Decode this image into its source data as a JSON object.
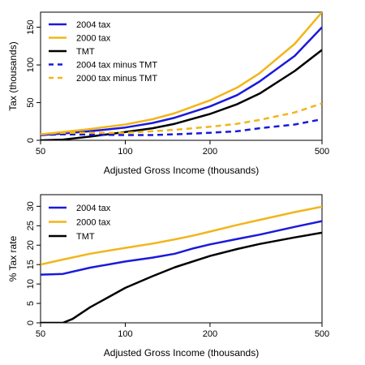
{
  "chart_data": [
    {
      "type": "line",
      "xlabel": "Adjusted Gross Income (thousands)",
      "ylabel": "Tax (thousands)",
      "x_scale": "log",
      "xlim": [
        50,
        500
      ],
      "ylim": [
        0,
        170
      ],
      "xticks": [
        50,
        100,
        200,
        500
      ],
      "yticks": [
        0,
        50,
        100,
        150
      ],
      "grid": false,
      "legend_position": "top-left",
      "series": [
        {
          "name": "2004 tax",
          "color": "#1a1adb",
          "style": "solid",
          "x": [
            50,
            60,
            75,
            100,
            125,
            150,
            200,
            250,
            300,
            400,
            500
          ],
          "y": [
            7,
            9,
            12,
            17,
            23,
            30,
            45,
            60,
            78,
            112,
            150
          ]
        },
        {
          "name": "2000 tax",
          "color": "#f2b51a",
          "style": "solid",
          "x": [
            50,
            60,
            75,
            100,
            125,
            150,
            200,
            250,
            300,
            400,
            500
          ],
          "y": [
            8,
            11,
            15,
            21,
            28,
            36,
            53,
            70,
            89,
            128,
            170
          ]
        },
        {
          "name": "TMT",
          "color": "#000000",
          "style": "solid",
          "x": [
            50,
            60,
            75,
            100,
            125,
            150,
            200,
            250,
            300,
            400,
            500
          ],
          "y": [
            0,
            1,
            5,
            11,
            16,
            22,
            35,
            48,
            62,
            92,
            120
          ]
        },
        {
          "name": "2004 tax minus TMT",
          "color": "#1a1adb",
          "style": "dashed",
          "x": [
            50,
            60,
            75,
            100,
            125,
            150,
            200,
            250,
            300,
            400,
            500
          ],
          "y": [
            7,
            8,
            7.5,
            7,
            7,
            8,
            10,
            12,
            16,
            21,
            28
          ]
        },
        {
          "name": "2000 tax minus TMT",
          "color": "#f2b51a",
          "style": "dashed",
          "x": [
            50,
            60,
            75,
            100,
            125,
            150,
            200,
            250,
            300,
            400,
            500
          ],
          "y": [
            8,
            10,
            10,
            10,
            12,
            14,
            18,
            22,
            27,
            37,
            49
          ]
        }
      ]
    },
    {
      "type": "line",
      "xlabel": "Adjusted Gross Income (thousands)",
      "ylabel": "% Tax rate",
      "x_scale": "log",
      "xlim": [
        50,
        500
      ],
      "ylim": [
        0,
        33
      ],
      "xticks": [
        50,
        100,
        200,
        500
      ],
      "yticks": [
        0,
        5,
        10,
        15,
        20,
        25,
        30
      ],
      "ytick_labels": [
        "0",
        "5",
        "10",
        "15",
        "20",
        "25",
        "30"
      ],
      "grid": false,
      "legend_position": "top-left",
      "series": [
        {
          "name": "2004 tax",
          "color": "#1a1adb",
          "style": "solid",
          "x": [
            50,
            60,
            75,
            100,
            125,
            150,
            175,
            200,
            250,
            300,
            400,
            500
          ],
          "y": [
            12.4,
            12.6,
            14.2,
            15.8,
            16.8,
            17.8,
            19.2,
            20.2,
            21.6,
            22.7,
            24.7,
            26.2
          ]
        },
        {
          "name": "2000 tax",
          "color": "#f2b51a",
          "style": "solid",
          "x": [
            50,
            60,
            75,
            100,
            125,
            150,
            175,
            200,
            250,
            300,
            400,
            500
          ],
          "y": [
            15.0,
            16.3,
            17.8,
            19.3,
            20.4,
            21.5,
            22.5,
            23.5,
            25.2,
            26.5,
            28.5,
            29.9
          ]
        },
        {
          "name": "TMT",
          "color": "#000000",
          "style": "solid",
          "x": [
            50,
            60,
            65,
            75,
            100,
            125,
            150,
            200,
            250,
            300,
            400,
            500
          ],
          "y": [
            0,
            0,
            1,
            4,
            9,
            12,
            14.3,
            17.2,
            19,
            20.3,
            22.0,
            23.2
          ]
        }
      ]
    }
  ]
}
